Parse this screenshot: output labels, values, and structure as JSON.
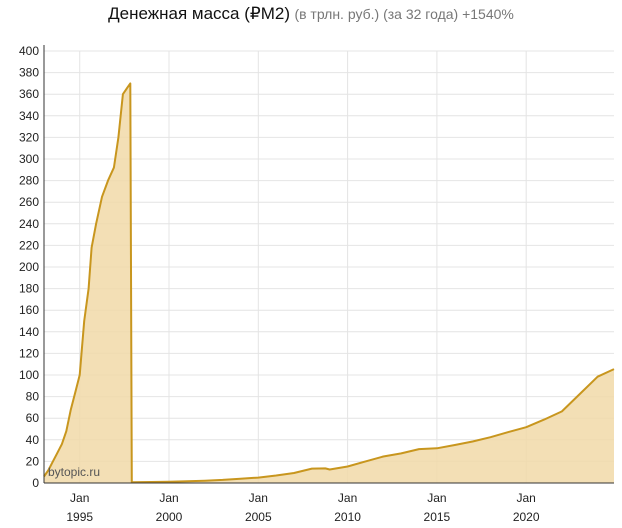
{
  "header": {
    "title": "Денежная масса (₽M2)",
    "subtitle": "(в трлн. руб.) (за 32 года) +1540%"
  },
  "watermark": "bytopic.ru",
  "colors": {
    "line": "#c8961e",
    "fill": "#f1d9a8",
    "grid": "#e4e4e4",
    "axis": "#333333"
  },
  "chart_data": {
    "type": "area",
    "title": "Денежная масса (₽M2)",
    "subtitle": "(в трлн. руб.) (за 32 года) +1540%",
    "xlabel": "",
    "ylabel": "",
    "ylim": [
      0,
      400
    ],
    "xlim": [
      "1993-01",
      "2024-12"
    ],
    "yticks": [
      0,
      20,
      40,
      60,
      80,
      100,
      120,
      140,
      160,
      180,
      200,
      220,
      240,
      260,
      280,
      300,
      320,
      340,
      360,
      380,
      400
    ],
    "xticks": [
      {
        "date": "1995-01",
        "month": "Jan",
        "year": "1995"
      },
      {
        "date": "2000-01",
        "month": "Jan",
        "year": "2000"
      },
      {
        "date": "2005-01",
        "month": "Jan",
        "year": "2005"
      },
      {
        "date": "2010-01",
        "month": "Jan",
        "year": "2010"
      },
      {
        "date": "2015-01",
        "month": "Jan",
        "year": "2015"
      },
      {
        "date": "2020-01",
        "month": "Jan",
        "year": "2020"
      }
    ],
    "grid": true,
    "legend": "none",
    "series": [
      {
        "points": [
          [
            "1993-01",
            6
          ],
          [
            "1993-04",
            12
          ],
          [
            "1993-07",
            20
          ],
          [
            "1993-10",
            28
          ],
          [
            "1994-01",
            36
          ],
          [
            "1994-04",
            48
          ],
          [
            "1994-07",
            68
          ],
          [
            "1994-10",
            84
          ],
          [
            "1995-01",
            100
          ],
          [
            "1995-04",
            150
          ],
          [
            "1995-07",
            180
          ],
          [
            "1995-09",
            218
          ],
          [
            "1995-12",
            240
          ],
          [
            "1996-04",
            265
          ],
          [
            "1996-08",
            280
          ],
          [
            "1996-12",
            292
          ],
          [
            "1997-03",
            320
          ],
          [
            "1997-06",
            360
          ],
          [
            "1997-09",
            366
          ],
          [
            "1997-11",
            370
          ],
          [
            "1997-12",
            0.7
          ],
          [
            "1998-06",
            0.8
          ],
          [
            "1999-01",
            0.9
          ],
          [
            "2000-01",
            1.1
          ],
          [
            "2001-01",
            1.6
          ],
          [
            "2002-01",
            2.1
          ],
          [
            "2003-01",
            2.9
          ],
          [
            "2004-01",
            4.0
          ],
          [
            "2005-01",
            5.0
          ],
          [
            "2006-01",
            6.9
          ],
          [
            "2007-01",
            9.3
          ],
          [
            "2008-01",
            13.3
          ],
          [
            "2008-10",
            13.5
          ],
          [
            "2009-01",
            12.5
          ],
          [
            "2010-01",
            15.3
          ],
          [
            "2011-01",
            20.0
          ],
          [
            "2012-01",
            24.5
          ],
          [
            "2013-01",
            27.4
          ],
          [
            "2014-01",
            31.4
          ],
          [
            "2015-01",
            32.1
          ],
          [
            "2016-01",
            35.2
          ],
          [
            "2017-01",
            38.4
          ],
          [
            "2018-01",
            42.4
          ],
          [
            "2019-01",
            47.1
          ],
          [
            "2020-01",
            51.7
          ],
          [
            "2021-01",
            58.7
          ],
          [
            "2022-01",
            66.3
          ],
          [
            "2023-01",
            82.4
          ],
          [
            "2024-01",
            98.4
          ],
          [
            "2024-12",
            105.5
          ]
        ]
      }
    ]
  }
}
